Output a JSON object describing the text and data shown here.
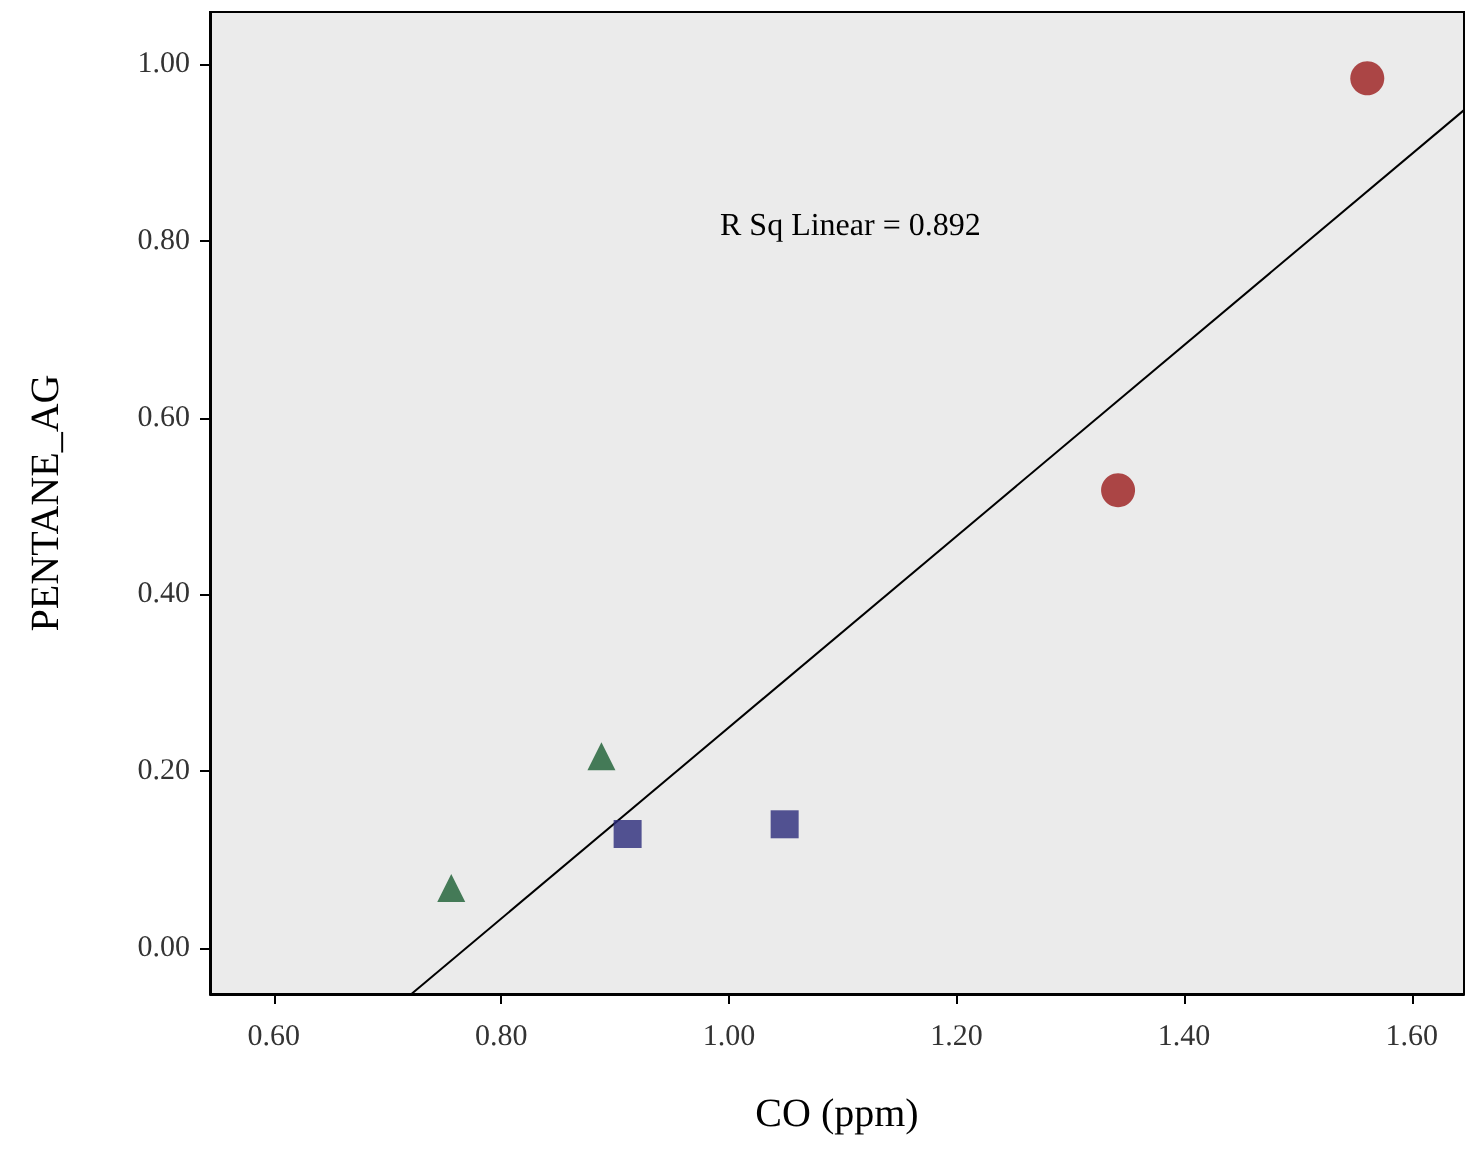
{
  "chart_data": {
    "type": "scatter",
    "xlabel": "CO (ppm)",
    "ylabel": "PENTANE_AG",
    "annotations": [
      "R Sq Linear = 0.892"
    ],
    "xlim": [
      0.544,
      1.646
    ],
    "ylim": [
      -0.052,
      1.059
    ],
    "xticks": [
      {
        "value": 0.6,
        "label": "0.60"
      },
      {
        "value": 0.8,
        "label": "0.80"
      },
      {
        "value": 1.0,
        "label": "1.00"
      },
      {
        "value": 1.2,
        "label": "1.20"
      },
      {
        "value": 1.4,
        "label": "1.40"
      },
      {
        "value": 1.6,
        "label": "1.60"
      }
    ],
    "yticks": [
      {
        "value": 0,
        "label": "0.00"
      },
      {
        "value": 0.2,
        "label": "0.20"
      },
      {
        "value": 0.4,
        "label": "0.40"
      },
      {
        "value": 0.6,
        "label": "0.60"
      },
      {
        "value": 0.8,
        "label": "0.80"
      },
      {
        "value": 1.0,
        "label": "1.00"
      }
    ],
    "grid": false,
    "series": [
      {
        "color": "#9b1b1b",
        "marker": "circle",
        "x": [
          1.342,
          1.561
        ],
        "values": [
          0.518,
          0.984
        ]
      },
      {
        "color": "#2b2a7a",
        "marker": "square",
        "x": [
          0.911,
          1.049
        ],
        "values": [
          0.129,
          0.14
        ]
      },
      {
        "color": "#1a5e32",
        "marker": "triangle",
        "x": [
          0.756,
          0.888
        ],
        "values": [
          0.068,
          0.217
        ]
      },
      {
        "type": "line",
        "color": "#000000",
        "marker": "none",
        "x": [
          0.721,
          1.646
        ],
        "values": [
          -0.052,
          0.948
        ]
      }
    ]
  }
}
